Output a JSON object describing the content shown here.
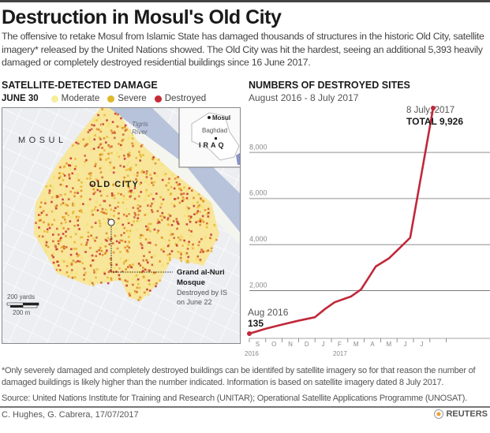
{
  "header": {
    "title": "Destruction in Mosul's Old City",
    "intro": "The offensive to retake Mosul from Islamic State has damaged thousands of structures in the historic Old City, satellite imagery* released by the United Nations showed. The Old City was hit the hardest, seeing an additional 5,393 heavily damaged or completely destroyed residential buildings since 16 June 2017."
  },
  "map": {
    "title": "SATELLITE-DETECTED DAMAGE",
    "legend": {
      "date": "JUNE 30",
      "items": [
        {
          "label": "Moderate",
          "color": "#f5ee9a"
        },
        {
          "label": "Severe",
          "color": "#e0b82a"
        },
        {
          "label": "Destroyed",
          "color": "#c62a36"
        }
      ]
    },
    "labels": {
      "city": "MOSUL",
      "river": "Tigris",
      "river2": "River",
      "district": "OLD CITY",
      "mosque_name": "Grand al-Nuri",
      "mosque_name2": "Mosque",
      "mosque_note": "Destroyed by IS",
      "mosque_note2": "on June 22",
      "scale_yards": "200 yards",
      "scale_m": "200 m"
    },
    "inset": {
      "city": "Mosul",
      "capital": "Baghdad",
      "country": "IRAQ"
    }
  },
  "chart_data": {
    "type": "line",
    "title": "NUMBERS OF DESTROYED SITES",
    "subtitle": "August 2016 - 8 July 2017",
    "xlabel": "",
    "ylabel": "",
    "x_ticks": [
      "S",
      "O",
      "N",
      "D",
      "J",
      "F",
      "M",
      "A",
      "M",
      "J",
      "J"
    ],
    "year_labels": [
      {
        "label": "2016",
        "at": 0
      },
      {
        "label": "2017",
        "at": 5
      }
    ],
    "y_ticks": [
      "2,000",
      "4,000",
      "6,000",
      "8,000"
    ],
    "ylim": [
      0,
      10000
    ],
    "grid": true,
    "series": [
      {
        "name": "Destroyed sites",
        "color": "#c0283a",
        "x": [
          0,
          1,
          2,
          3,
          4,
          4.6,
          5.2,
          6.2,
          6.8,
          7.3,
          7.7,
          8.5,
          9.3,
          9.8,
          11.2
        ],
        "values": [
          135,
          350,
          530,
          700,
          850,
          1200,
          1500,
          1750,
          2050,
          2600,
          3050,
          3400,
          3950,
          4300,
          9926
        ]
      }
    ],
    "annotations": [
      {
        "label": "Aug 2016",
        "value": "135"
      },
      {
        "label": "8 July, 2017",
        "value": "TOTAL 9,926"
      }
    ]
  },
  "footer": {
    "footnote": "*Only severely damaged and completely destroyed buildings can be identifed by satellite imagery so for that reason the number of damaged buildings is likely higher than the number indicated. Information is based on satellite imagery dated 8 July 2017.",
    "source": "Source: United Nations Institute for Training and Research (UNITAR); Operational Satellite Applications Programme (UNOSAT).",
    "credit": "C. Hughes, G. Cabrera, 17/07/2017",
    "brand": "REUTERS"
  }
}
